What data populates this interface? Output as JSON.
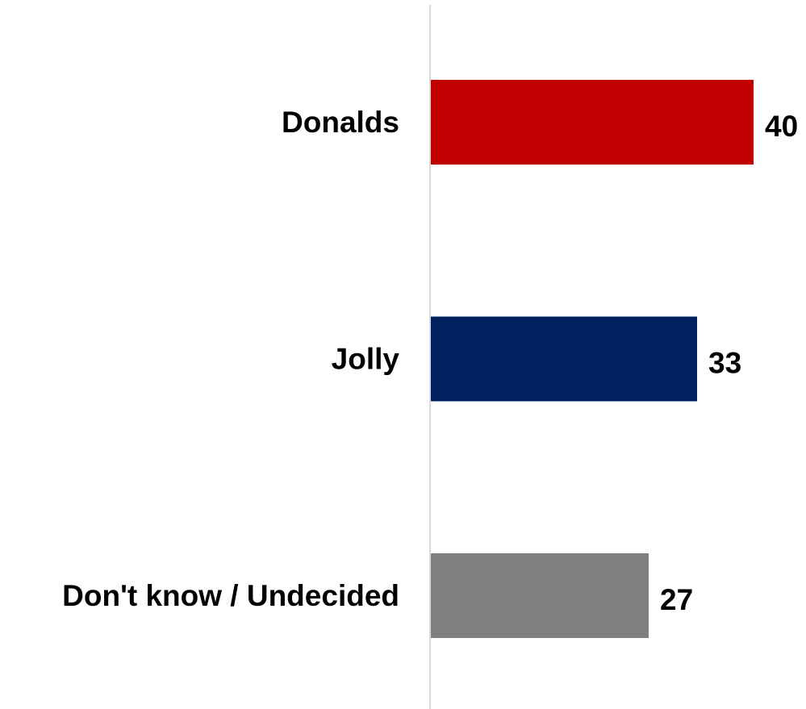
{
  "chart_data": {
    "type": "bar",
    "orientation": "horizontal",
    "categories": [
      "Donalds",
      "Jolly",
      "Don't know / Undecided"
    ],
    "values": [
      40,
      33,
      27
    ],
    "colors": [
      "#c00000",
      "#002060",
      "#808080"
    ],
    "data_labels": [
      "40",
      "33",
      "27"
    ],
    "xlim": [
      0,
      40
    ],
    "grid": false,
    "legend": "none",
    "axis_line_color": "#d9d9d9"
  }
}
